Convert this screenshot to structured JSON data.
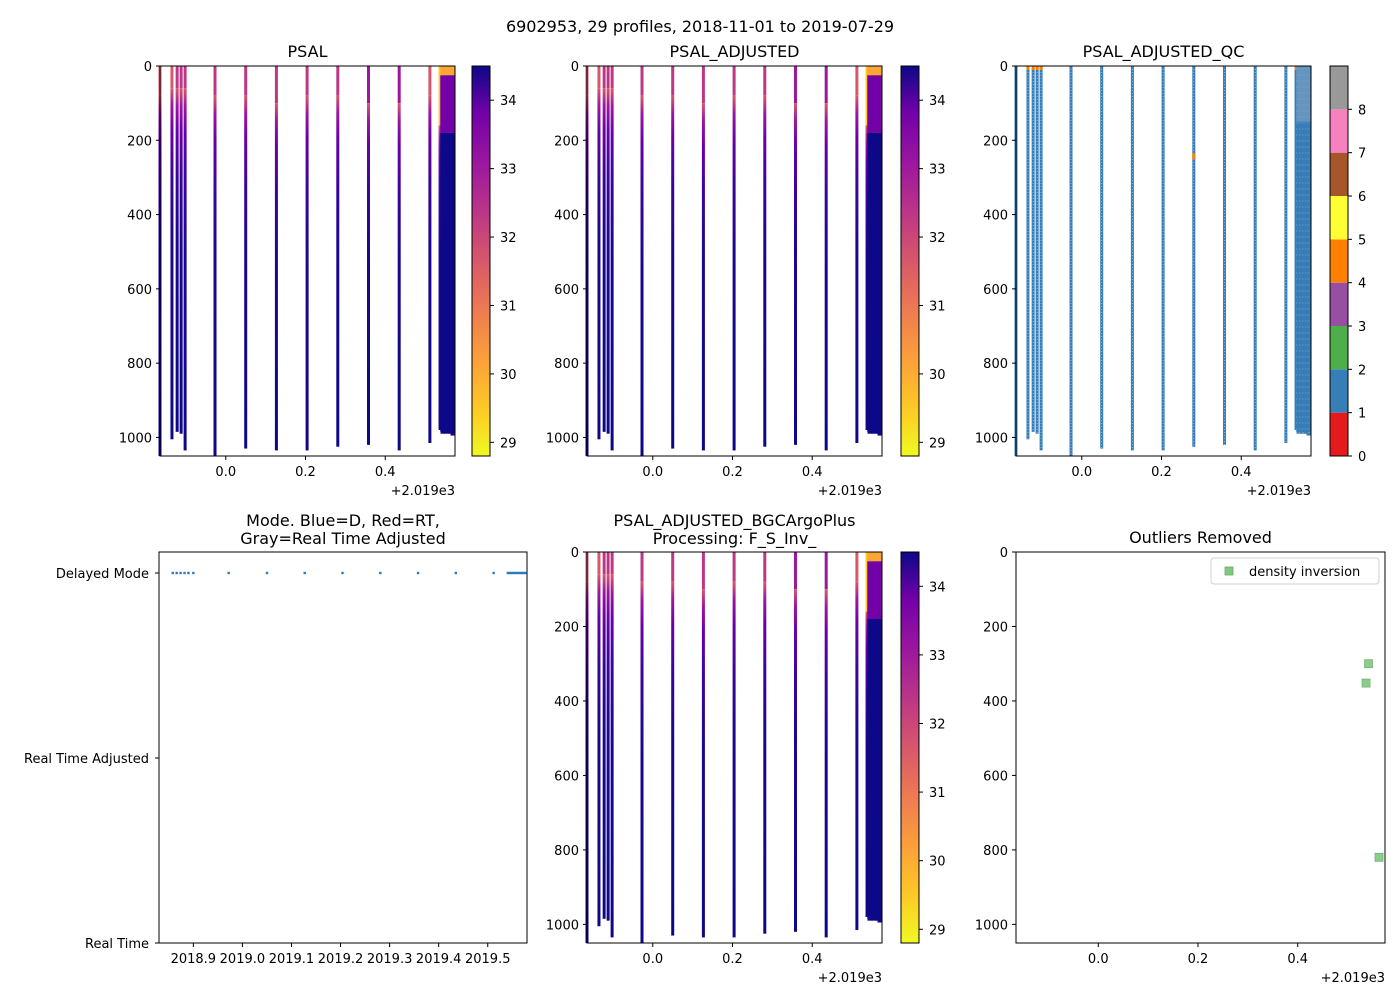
{
  "figure": {
    "title": "6902953, 29 profiles, 2018-11-01 to 2019-07-29"
  },
  "colors": {
    "mode_dot": "#2c7bb6",
    "outlier": "#7fc97f",
    "qc_base": "#377eb8",
    "qc_flag4": "#ff7f00"
  },
  "chart_data": [
    {
      "id": "psal",
      "type": "heatmap",
      "title": "PSAL",
      "x_ticks": [
        "0.0",
        "0.2",
        "0.4"
      ],
      "x_offset": "+2.019e3",
      "y_ticks": [
        "0",
        "200",
        "400",
        "600",
        "800",
        "1000"
      ],
      "ylim": [
        1050,
        0
      ],
      "xlim": [
        -0.165,
        0.575
      ],
      "colorbar_ticks": [
        "29",
        "30",
        "31",
        "32",
        "33",
        "34"
      ],
      "clim": [
        28.8,
        34.5
      ],
      "colormap": "plasma_r"
    },
    {
      "id": "psal_adjusted",
      "type": "heatmap",
      "title": "PSAL_ADJUSTED",
      "x_ticks": [
        "0.0",
        "0.2",
        "0.4"
      ],
      "x_offset": "+2.019e3",
      "y_ticks": [
        "0",
        "200",
        "400",
        "600",
        "800",
        "1000"
      ],
      "ylim": [
        1050,
        0
      ],
      "xlim": [
        -0.165,
        0.575
      ],
      "colorbar_ticks": [
        "29",
        "30",
        "31",
        "32",
        "33",
        "34"
      ],
      "clim": [
        28.8,
        34.5
      ],
      "colormap": "plasma_r"
    },
    {
      "id": "psal_adjusted_qc",
      "type": "heatmap",
      "title": "PSAL_ADJUSTED_QC",
      "x_ticks": [
        "0.0",
        "0.2",
        "0.4"
      ],
      "x_offset": "+2.019e3",
      "y_ticks": [
        "0",
        "200",
        "400",
        "600",
        "800",
        "1000"
      ],
      "ylim": [
        1050,
        0
      ],
      "xlim": [
        -0.165,
        0.575
      ],
      "colorbar_ticks": [
        "0",
        "1",
        "2",
        "3",
        "4",
        "5",
        "6",
        "7",
        "8"
      ],
      "qc_colors": [
        "#e41a1c",
        "#377eb8",
        "#4daf4a",
        "#984ea3",
        "#ff7f00",
        "#ffff33",
        "#a65628",
        "#f781bf",
        "#999999"
      ]
    },
    {
      "id": "mode",
      "type": "scatter",
      "title": "Mode. Blue=D, Red=RT,",
      "title_line2": "Gray=Real Time Adjusted",
      "x_ticks": [
        "2018.9",
        "2019.0",
        "2019.1",
        "2019.2",
        "2019.3",
        "2019.4",
        "2019.5"
      ],
      "y_ticks": [
        "Delayed Mode",
        "Real Time Adjusted",
        "Real Time"
      ],
      "xlim": [
        2018.83,
        2019.58
      ],
      "points_x": [
        2018.858,
        2018.866,
        2018.874,
        2018.882,
        2018.89,
        2018.9,
        2018.972,
        2019.05,
        2019.127,
        2019.204,
        2019.281,
        2019.358,
        2019.435,
        2019.512,
        2019.541,
        2019.545,
        2019.549,
        2019.553,
        2019.557,
        2019.561,
        2019.565,
        2019.569,
        2019.573,
        2019.577
      ],
      "points_mode": "Delayed Mode"
    },
    {
      "id": "psal_bgc",
      "type": "heatmap",
      "title": "PSAL_ADJUSTED_BGCArgoPlus",
      "title_line2": "Processing: F_S_Inv_",
      "x_ticks": [
        "0.0",
        "0.2",
        "0.4"
      ],
      "x_offset": "+2.019e3",
      "y_ticks": [
        "0",
        "200",
        "400",
        "600",
        "800",
        "1000"
      ],
      "ylim": [
        1050,
        0
      ],
      "xlim": [
        -0.165,
        0.575
      ],
      "colorbar_ticks": [
        "29",
        "30",
        "31",
        "32",
        "33",
        "34"
      ],
      "clim": [
        28.8,
        34.5
      ],
      "colormap": "plasma_r"
    },
    {
      "id": "outliers",
      "type": "scatter",
      "title": "Outliers Removed",
      "x_ticks": [
        "0.0",
        "0.2",
        "0.4"
      ],
      "x_offset": "+2.019e3",
      "y_ticks": [
        "0",
        "200",
        "400",
        "600",
        "800",
        "1000"
      ],
      "ylim": [
        1050,
        0
      ],
      "xlim": [
        -0.165,
        0.575
      ],
      "legend": [
        "density inversion"
      ],
      "legend_loc": "upper right",
      "points": [
        {
          "x": 0.542,
          "y": 300
        },
        {
          "x": 0.537,
          "y": 352
        },
        {
          "x": 0.563,
          "y": 820
        }
      ]
    }
  ],
  "profiles": {
    "x": [
      -0.165,
      -0.135,
      -0.122,
      -0.112,
      -0.102,
      -0.027,
      0.05,
      0.127,
      0.204,
      0.281,
      0.358,
      0.435,
      0.512,
      0.54,
      0.545,
      0.55,
      0.555,
      0.56,
      0.565,
      0.57
    ],
    "depth_max": [
      1050,
      1005,
      985,
      990,
      1035,
      1050,
      1030,
      1035,
      1035,
      1025,
      1020,
      1035,
      1015,
      980,
      990,
      985,
      990,
      985,
      990,
      995
    ],
    "surface_salinity": [
      31.8,
      32.0,
      32.2,
      32.4,
      32.5,
      32.6,
      32.7,
      32.6,
      32.5,
      32.6,
      32.8,
      32.9,
      32.0,
      29.2,
      29.0,
      29.1,
      29.3,
      29.2,
      29.5,
      30.0
    ],
    "halocline_depth": [
      80,
      60,
      60,
      60,
      60,
      80,
      80,
      100,
      80,
      80,
      100,
      100,
      80,
      160,
      180,
      170,
      180,
      160,
      200,
      180
    ]
  }
}
